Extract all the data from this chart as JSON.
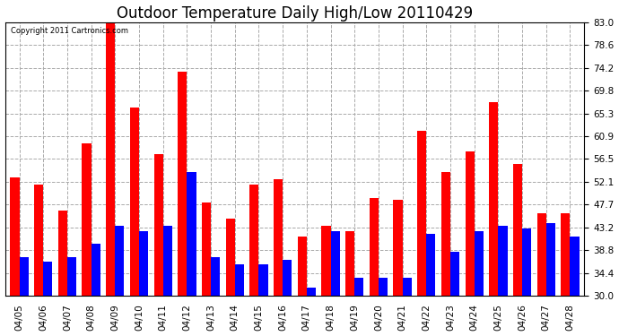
{
  "title": "Outdoor Temperature Daily High/Low 20110429",
  "copyright": "Copyright 2011 Cartronics.com",
  "dates": [
    "04/05",
    "04/06",
    "04/07",
    "04/08",
    "04/09",
    "04/10",
    "04/11",
    "04/12",
    "04/13",
    "04/14",
    "04/15",
    "04/16",
    "04/17",
    "04/18",
    "04/19",
    "04/20",
    "04/21",
    "04/22",
    "04/23",
    "04/24",
    "04/25",
    "04/26",
    "04/27",
    "04/28"
  ],
  "highs": [
    53.0,
    51.5,
    46.5,
    59.5,
    83.0,
    66.5,
    57.5,
    73.5,
    48.0,
    45.0,
    51.5,
    52.5,
    41.5,
    43.5,
    42.5,
    49.0,
    48.5,
    62.0,
    54.0,
    58.0,
    67.5,
    55.5,
    46.0,
    46.0
  ],
  "lows": [
    37.5,
    36.5,
    37.5,
    40.0,
    43.5,
    42.5,
    43.5,
    54.0,
    37.5,
    36.0,
    36.0,
    37.0,
    31.5,
    42.5,
    33.5,
    33.5,
    33.5,
    42.0,
    38.5,
    42.5,
    43.5,
    43.0,
    44.0,
    41.5
  ],
  "high_color": "#ff0000",
  "low_color": "#0000ff",
  "bg_color": "#ffffff",
  "ymin": 30.0,
  "ymax": 83.0,
  "yticks": [
    30.0,
    34.4,
    38.8,
    43.2,
    47.7,
    52.1,
    56.5,
    60.9,
    65.3,
    69.8,
    74.2,
    78.6,
    83.0
  ],
  "grid_color": "#aaaaaa",
  "title_fontsize": 12,
  "tick_fontsize": 7.5,
  "bar_width": 0.38
}
